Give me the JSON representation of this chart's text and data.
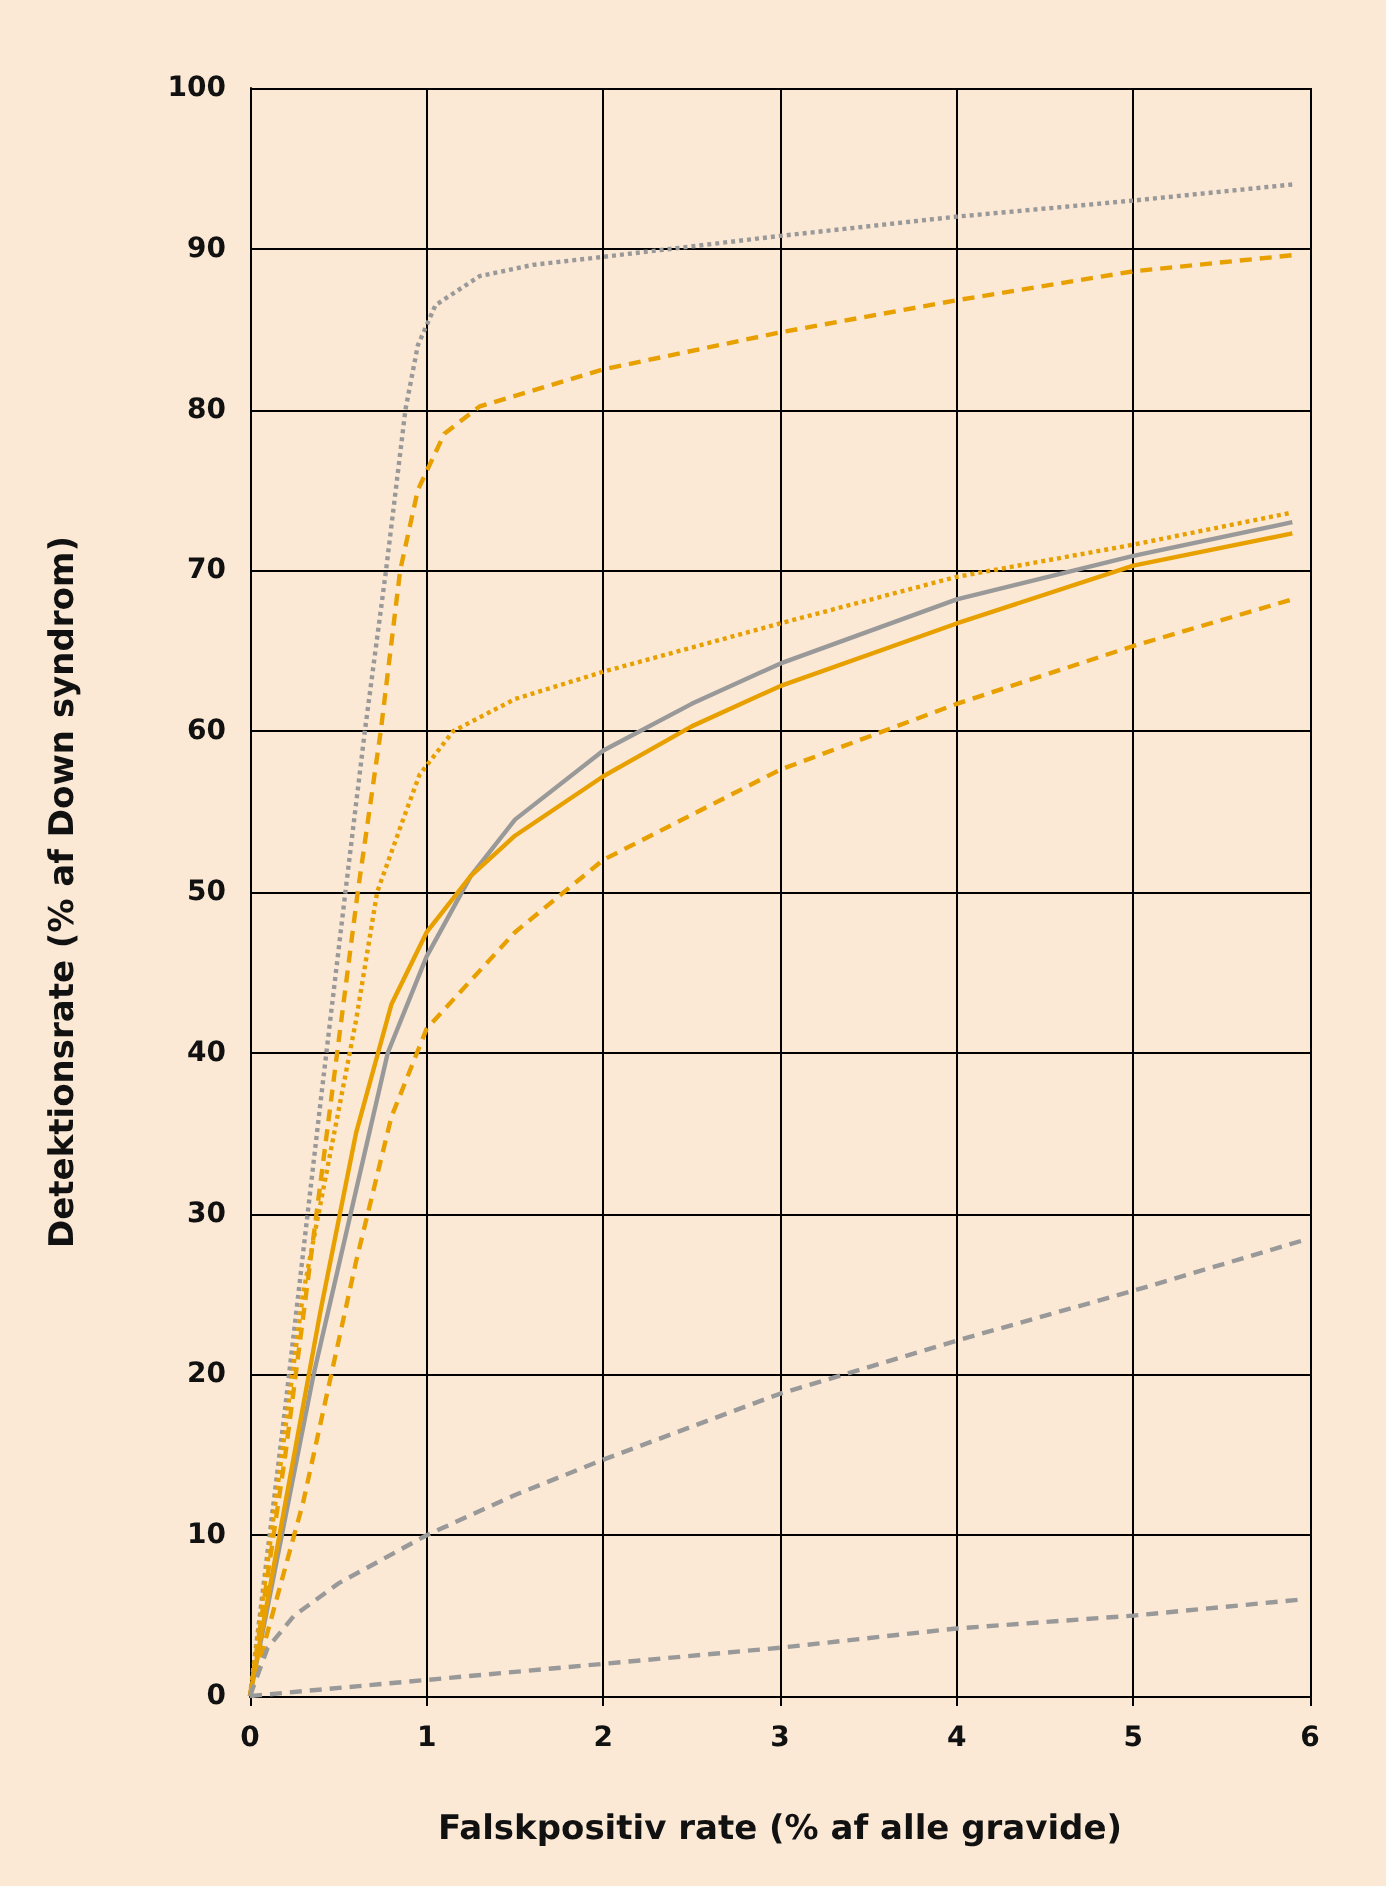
{
  "chart_data": {
    "type": "line",
    "xlabel": "Falskpositiv rate (% af alle gravide)",
    "ylabel": "Detektionsrate (% af Down syndrom)",
    "xlim": [
      0,
      6
    ],
    "xticks": [
      0,
      1,
      2,
      3,
      4,
      5,
      6
    ],
    "ylim": [
      0,
      100
    ],
    "yticks": [
      0,
      10,
      20,
      30,
      40,
      50,
      60,
      70,
      80,
      90,
      100
    ],
    "grid": true,
    "marker": "none",
    "series": [
      {
        "color": "#999999",
        "line_style": "dotted",
        "x": [
          0,
          0.2,
          0.4,
          0.54,
          0.65,
          0.77,
          0.88,
          0.95,
          1.05,
          1.3,
          1.6,
          2,
          3,
          4,
          5,
          5.9
        ],
        "values": [
          0,
          18,
          37,
          50,
          60,
          70,
          80,
          84,
          86.5,
          88.3,
          89,
          89.5,
          90.8,
          92,
          93,
          94
        ]
      },
      {
        "color": "#e8a000",
        "line_style": "dashed",
        "x": [
          0,
          0.2,
          0.4,
          0.61,
          0.74,
          0.85,
          0.95,
          1.1,
          1.3,
          2,
          3,
          4,
          5,
          5.9
        ],
        "values": [
          0,
          15,
          32,
          50,
          60,
          70,
          75,
          78.5,
          80.2,
          82.5,
          84.8,
          86.8,
          88.6,
          89.6
        ]
      },
      {
        "color": "#e8a000",
        "line_style": "dotted",
        "x": [
          0,
          0.3,
          0.6,
          0.72,
          0.85,
          0.96,
          1.15,
          1.5,
          2,
          3,
          4,
          5,
          5.9
        ],
        "values": [
          0,
          25,
          42,
          50,
          54,
          57.3,
          60,
          62,
          63.7,
          66.7,
          69.6,
          71.6,
          73.6
        ]
      },
      {
        "color": "#999999",
        "line_style": "solid",
        "x": [
          0,
          0.18,
          0.36,
          0.57,
          0.78,
          1,
          1.25,
          1.5,
          2,
          2.5,
          3,
          4,
          5,
          5.9
        ],
        "values": [
          0,
          10,
          20,
          30,
          40,
          46,
          51,
          54.5,
          58.8,
          61.7,
          64.2,
          68.2,
          70.9,
          73
        ]
      },
      {
        "color": "#e8a000",
        "line_style": "solid",
        "x": [
          0,
          0.2,
          0.4,
          0.6,
          0.8,
          1,
          1.25,
          1.5,
          2,
          2.5,
          3,
          4,
          5,
          5.9
        ],
        "values": [
          0,
          12,
          24,
          35,
          43,
          47.5,
          51,
          53.5,
          57.2,
          60.3,
          62.8,
          66.7,
          70.3,
          72.3
        ]
      },
      {
        "color": "#e8a000",
        "line_style": "dashed",
        "x": [
          0,
          0.3,
          0.6,
          0.8,
          1,
          1.5,
          2,
          3,
          4,
          5,
          5.9
        ],
        "values": [
          0,
          12,
          27,
          36,
          41.5,
          47.5,
          52,
          57.6,
          61.7,
          65.3,
          68.2
        ]
      },
      {
        "color": "#999999",
        "line_style": "dashed",
        "x": [
          0,
          0.1,
          0.25,
          0.5,
          1,
          1.5,
          2,
          3,
          4,
          5,
          5.95
        ],
        "values": [
          0,
          3,
          5,
          7,
          10,
          12.5,
          14.7,
          18.8,
          22.1,
          25.2,
          28.3
        ]
      },
      {
        "color": "#999999",
        "line_style": "dashed",
        "x": [
          0,
          1,
          2,
          3,
          4,
          5,
          5.95
        ],
        "values": [
          0,
          1,
          2,
          3,
          4.2,
          5,
          6
        ]
      }
    ]
  }
}
